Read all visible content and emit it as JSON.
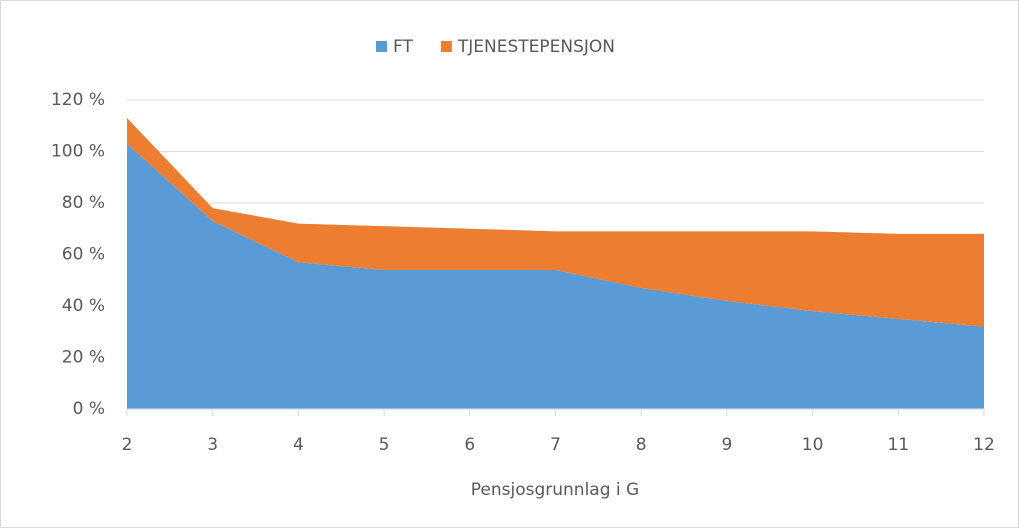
{
  "chart_data": {
    "type": "stacked_area",
    "x_label": "Pensjosgrunnlag i G",
    "x": [
      2,
      3,
      4,
      5,
      6,
      7,
      8,
      9,
      10,
      11,
      12
    ],
    "series": [
      {
        "name": "FT",
        "color": "#5b9bd5",
        "values": [
          103,
          73,
          57,
          54,
          54,
          54,
          47,
          42,
          38,
          35,
          32
        ]
      },
      {
        "name": "TJENESTEPENSJON",
        "color": "#ed7d31",
        "values": [
          10,
          5,
          15,
          17,
          16,
          15,
          22,
          27,
          31,
          33,
          36
        ]
      }
    ],
    "xlim": [
      2,
      12
    ],
    "xticks": [
      2,
      3,
      4,
      5,
      6,
      7,
      8,
      9,
      10,
      11,
      12
    ],
    "ylim": [
      0,
      120
    ],
    "yticks": [
      {
        "value": 0,
        "label": "0 %"
      },
      {
        "value": 20,
        "label": "20 %"
      },
      {
        "value": 40,
        "label": "40 %"
      },
      {
        "value": 60,
        "label": "60 %"
      },
      {
        "value": 80,
        "label": "80 %"
      },
      {
        "value": 100,
        "label": "100 %"
      },
      {
        "value": 120,
        "label": "120 %"
      }
    ],
    "grid": true,
    "legend": "top"
  }
}
